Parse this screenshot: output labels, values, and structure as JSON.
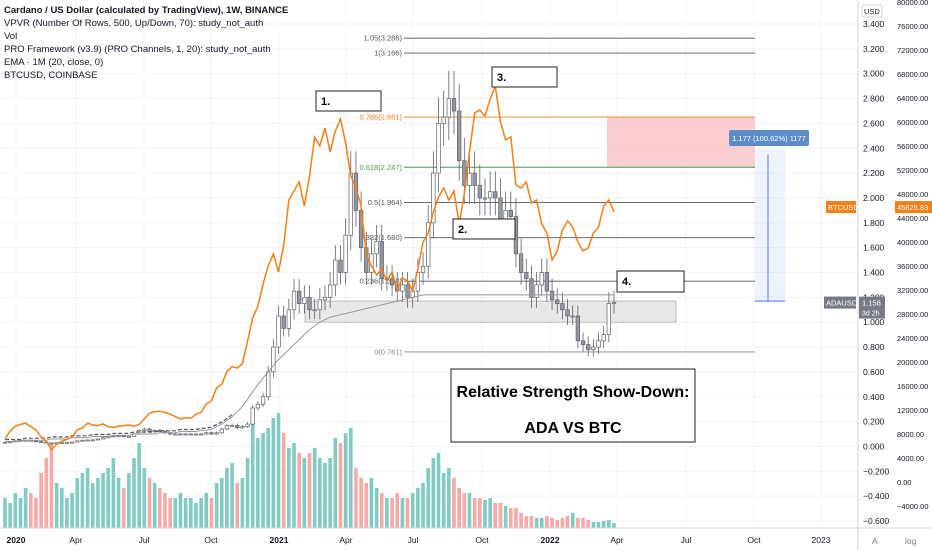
{
  "legend": {
    "title": "Cardano / US Dollar (calculated by TradingView), 1W, BINANCE",
    "indicators": [
      "VPVR (Number Of Rows, 500, Up/Down, 70): study_not_auth",
      "Vol",
      "PRO Framework (v3.9) (PRO Channels, 1, 20): study_not_auth",
      "EMA · 1M (20, close, 0)",
      "BTCUSD, COINBASE"
    ]
  },
  "chart_data": {
    "type": "line",
    "x_axis": {
      "labels": [
        "2020",
        "Apr",
        "Jul",
        "Oct",
        "2021",
        "Apr",
        "Jul",
        "Oct",
        "2022",
        "Apr",
        "Jul",
        "Oct",
        "2023"
      ],
      "bold_labels": [
        "2020",
        "2021",
        "2022"
      ]
    },
    "ada_axis": {
      "unit": "USD",
      "ticks": [
        3.4,
        3.2,
        3.0,
        2.8,
        2.6,
        2.4,
        2.2,
        2.0,
        1.8,
        1.6,
        1.4,
        1.2,
        1.0,
        0.8,
        0.6,
        0.4,
        0.2,
        0.0,
        -0.2,
        -0.4,
        -0.6
      ],
      "tick_labels": [
        "3.400",
        "3.200",
        "3.000",
        "2.800",
        "2.600",
        "2.400",
        "2.200",
        "2.000",
        "1.800",
        "1.600",
        "1.400",
        "1.200",
        "1.000",
        "0.800",
        "0.600",
        "0.400",
        "0.200",
        "0.000",
        "−0.200",
        "−0.400",
        "−0.600"
      ],
      "range": [
        -0.6,
        3.45
      ]
    },
    "btc_axis": {
      "ticks": [
        80000,
        76000,
        72000,
        68000,
        64000,
        60000,
        56000,
        52000,
        48000,
        44000,
        40000,
        36000,
        32000,
        28000,
        24000,
        20000,
        16000,
        12000,
        8000,
        4000,
        0,
        -4000
      ],
      "tick_labels": [
        "80000.00",
        "76000.00",
        "72000.00",
        "68000.00",
        "64000.00",
        "60000.00",
        "56000.00",
        "52000.00",
        "48000.00",
        "44000.00",
        "40000.00",
        "36000.00",
        "32000.00",
        "28000.00",
        "24000.00",
        "20000.00",
        "16000.00",
        "12000.00",
        "8000.00",
        "4000.00",
        "0.00",
        "−4000.00"
      ]
    },
    "series": [
      {
        "name": "BTCUSD",
        "color": "#f57f17",
        "values": [
          7200,
          8500,
          9300,
          9600,
          9800,
          9200,
          8700,
          7500,
          6800,
          5400,
          6300,
          6800,
          7100,
          7500,
          8700,
          9000,
          9800,
          9500,
          9400,
          9700,
          9200,
          9100,
          9300,
          9400,
          9500,
          9300,
          9600,
          10500,
          11500,
          11700,
          11800,
          11600,
          11300,
          10900,
          10500,
          10700,
          10600,
          11300,
          11600,
          13000,
          13500,
          15700,
          16300,
          18400,
          19200,
          19000,
          19700,
          23500,
          27400,
          29300,
          33000,
          36000,
          38000,
          35000,
          39500,
          47000,
          48500,
          50000,
          46000,
          51000,
          57500,
          56000,
          59000,
          55000,
          58500,
          60500,
          56500,
          51000,
          49000,
          46000,
          38000,
          36000,
          34500,
          35500,
          33500,
          35000,
          32000,
          34000,
          33500,
          31800,
          35500,
          40000,
          41500,
          45000,
          47500,
          49000,
          47000,
          48500,
          43000,
          48000,
          55000,
          61500,
          62000,
          61000,
          63800,
          66000,
          60000,
          57000,
          57500,
          49500,
          49000,
          50000,
          46500,
          47000,
          43000,
          41500,
          37000,
          38500,
          42000,
          43500,
          42500,
          40000,
          38500,
          39000,
          41500,
          42500,
          46000,
          47000,
          45000
        ]
      },
      {
        "name": "ADAUSD",
        "color": "#26a69a",
        "down_color": "#ef5350",
        "values": [
          0.034,
          0.038,
          0.045,
          0.05,
          0.05,
          0.045,
          0.04,
          0.035,
          0.028,
          0.027,
          0.03,
          0.032,
          0.033,
          0.035,
          0.045,
          0.05,
          0.052,
          0.053,
          0.06,
          0.07,
          0.08,
          0.085,
          0.086,
          0.08,
          0.082,
          0.1,
          0.13,
          0.14,
          0.12,
          0.13,
          0.12,
          0.11,
          0.1,
          0.1,
          0.1,
          0.1,
          0.1,
          0.1,
          0.1,
          0.11,
          0.1,
          0.11,
          0.14,
          0.17,
          0.17,
          0.15,
          0.16,
          0.18,
          0.31,
          0.34,
          0.4,
          0.6,
          0.8,
          1.05,
          0.95,
          1.1,
          1.25,
          1.15,
          1.2,
          1.1,
          1.1,
          1.18,
          1.2,
          1.3,
          1.5,
          1.4,
          1.7,
          2.2,
          1.9,
          1.6,
          1.4,
          1.55,
          1.65,
          1.35,
          1.35,
          1.3,
          1.25,
          1.3,
          1.2,
          1.25,
          1.4,
          1.45,
          1.8,
          2.2,
          2.6,
          2.65,
          2.8,
          2.7,
          2.3,
          2.1,
          2.2,
          2.1,
          2.0,
          2.0,
          2.05,
          2.0,
          1.8,
          1.9,
          1.85,
          1.55,
          1.4,
          1.35,
          1.2,
          1.3,
          1.4,
          1.25,
          1.18,
          1.15,
          1.1,
          1.05,
          1.05,
          0.85,
          0.82,
          0.78,
          0.8,
          0.85,
          0.9,
          1.15,
          1.16
        ]
      },
      {
        "name": "EMA",
        "color": "#555555",
        "values": [
          0.04,
          0.04,
          0.04,
          0.04,
          0.05,
          0.05,
          0.05,
          0.05,
          0.05,
          0.06,
          0.06,
          0.06,
          0.06,
          0.07,
          0.07,
          0.07,
          0.07,
          0.08,
          0.08,
          0.08,
          0.08,
          0.09,
          0.09,
          0.09,
          0.09,
          0.1,
          0.1,
          0.1,
          0.1,
          0.1,
          0.11,
          0.11,
          0.11,
          0.11,
          0.12,
          0.12,
          0.12,
          0.12,
          0.13,
          0.13,
          0.14,
          0.16,
          0.18,
          0.21,
          0.24,
          0.28,
          0.32,
          0.38,
          0.44,
          0.5,
          0.55,
          0.6,
          0.65,
          0.7,
          0.74,
          0.78,
          0.82,
          0.86,
          0.9,
          0.94,
          0.97,
          1.0,
          1.02,
          1.04,
          1.05,
          1.06,
          1.07,
          1.08,
          1.09,
          1.1,
          1.11,
          1.12,
          1.13,
          1.14,
          1.15,
          1.16,
          1.17,
          1.18,
          1.19,
          1.2,
          1.21,
          1.22,
          1.22,
          1.22,
          1.22,
          1.22,
          1.22,
          1.22,
          1.22,
          1.22,
          1.22,
          1.22,
          1.22,
          1.22,
          1.22,
          1.22,
          1.22,
          1.22,
          1.22,
          1.22,
          1.22,
          1.22,
          1.22,
          1.22,
          1.22,
          1.22,
          1.22,
          1.22,
          1.22,
          1.22,
          1.22,
          1.22,
          1.22,
          1.22,
          1.22,
          1.22,
          1.22,
          1.22,
          1.22
        ]
      },
      {
        "name": "Vol",
        "values": [
          0.3,
          0.25,
          0.35,
          0.3,
          0.4,
          0.35,
          0.3,
          0.55,
          0.7,
          0.85,
          0.45,
          0.4,
          0.3,
          0.35,
          0.5,
          0.55,
          0.6,
          0.45,
          0.5,
          0.55,
          0.6,
          0.7,
          0.5,
          0.4,
          0.55,
          0.7,
          0.85,
          0.6,
          0.5,
          0.45,
          0.4,
          0.35,
          0.3,
          0.3,
          0.35,
          0.3,
          0.3,
          0.25,
          0.3,
          0.35,
          0.3,
          0.45,
          0.5,
          0.6,
          0.65,
          0.45,
          0.5,
          0.7,
          1.2,
          0.9,
          0.95,
          1.0,
          1.1,
          1.15,
          0.95,
          0.8,
          0.85,
          0.75,
          0.7,
          0.75,
          0.8,
          0.7,
          0.65,
          0.7,
          0.9,
          0.85,
          0.95,
          1.0,
          0.6,
          0.5,
          0.45,
          0.5,
          0.4,
          0.35,
          0.3,
          0.3,
          0.35,
          0.3,
          0.3,
          0.35,
          0.4,
          0.45,
          0.6,
          0.7,
          0.75,
          0.55,
          0.6,
          0.5,
          0.4,
          0.35,
          0.35,
          0.3,
          0.3,
          0.28,
          0.3,
          0.25,
          0.25,
          0.22,
          0.2,
          0.2,
          0.15,
          0.12,
          0.12,
          0.1,
          0.1,
          0.12,
          0.1,
          0.08,
          0.1,
          0.12,
          0.15,
          0.1,
          0.1,
          0.08,
          0.06,
          0.06,
          0.07,
          0.08,
          0.05
        ]
      }
    ],
    "fib_levels": [
      {
        "label": "1.05(3.286)",
        "value": 3.286,
        "color": "#555555"
      },
      {
        "label": "1(3.166)",
        "value": 3.166,
        "color": "#555555"
      },
      {
        "label": "0.786(2.651)",
        "value": 2.651,
        "color": "#f57f17"
      },
      {
        "label": "0.618(2.247)",
        "value": 2.247,
        "color": "#43a047"
      },
      {
        "label": "0.5(1.964)",
        "value": 1.964,
        "color": "#555555"
      },
      {
        "label": "0.382(1.680)",
        "value": 1.68,
        "color": "#555555"
      },
      {
        "label": "0.236(1.330)",
        "value": 1.33,
        "color": "#555555"
      },
      {
        "label": "0(0.761)",
        "value": 0.761,
        "color": "#888888"
      }
    ],
    "measure": {
      "label": "1.177 (100.62%) 1177",
      "from": 1.17,
      "to": 2.35
    },
    "target_zone": {
      "from": 2.247,
      "to": 2.651
    },
    "support_zone": {
      "from": 1.0,
      "to": 1.17
    },
    "annotations": [
      "1.",
      "2.",
      "3.",
      "4."
    ],
    "caption": {
      "line1": "Relative Strength Show-Down:",
      "line2": "ADA VS BTC"
    },
    "price_tags": {
      "btc_name": "BTCUSD",
      "btc_value": "45825.83",
      "btc_price": 45825.83,
      "ada_name": "ADAUSD",
      "ada_value": "1.158",
      "ada_countdown": "3d 2h",
      "ada_price": 1.158
    },
    "axis_units": {
      "ada": "USD",
      "footer_a": "A",
      "footer_log": "log"
    }
  }
}
